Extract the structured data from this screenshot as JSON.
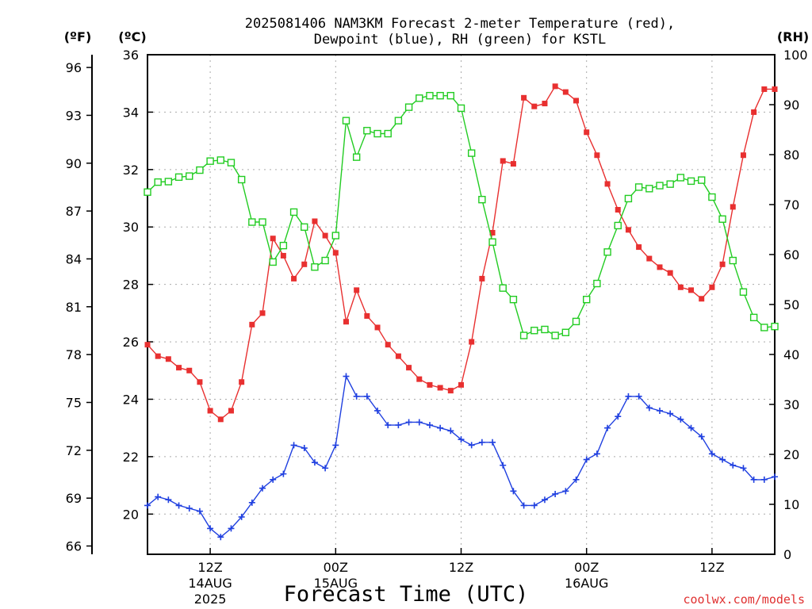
{
  "chart_data": {
    "type": "line",
    "title_line1": "2025081406 NAM3KM Forecast 2-meter Temperature (red),",
    "title_line2": "Dewpoint (blue), RH (green) for KSTL",
    "xlabel": "Forecast Time (UTC)",
    "credit": "coolwx.com/models",
    "left_unit_f": "(ºF)",
    "left_unit_c": "(ºC)",
    "right_unit": "(RH)",
    "ylim_c": [
      18.6,
      36
    ],
    "ylim_rh": [
      0,
      100
    ],
    "xlim_hours": [
      0,
      60
    ],
    "grid": true,
    "f_ticks": [
      "66",
      "69",
      "72",
      "75",
      "78",
      "81",
      "84",
      "87",
      "90",
      "93",
      "96"
    ],
    "f_tick_values_f": [
      66,
      69,
      72,
      75,
      78,
      81,
      84,
      87,
      90,
      93,
      96
    ],
    "c_ticks": [
      "20",
      "22",
      "24",
      "26",
      "28",
      "30",
      "32",
      "34",
      "36"
    ],
    "c_tick_values": [
      20,
      22,
      24,
      26,
      28,
      30,
      32,
      34,
      36
    ],
    "rh_ticks": [
      "0",
      "10",
      "20",
      "30",
      "40",
      "50",
      "60",
      "70",
      "80",
      "90",
      "100"
    ],
    "rh_tick_values": [
      0,
      10,
      20,
      30,
      40,
      50,
      60,
      70,
      80,
      90,
      100
    ],
    "x_ticks": [
      {
        "hour": 6,
        "label": "12Z",
        "sub": "14AUG",
        "sub2": "2025"
      },
      {
        "hour": 18,
        "label": "00Z",
        "sub": "15AUG",
        "sub2": ""
      },
      {
        "hour": 30,
        "label": "12Z",
        "sub": "",
        "sub2": ""
      },
      {
        "hour": 42,
        "label": "00Z",
        "sub": "16AUG",
        "sub2": ""
      },
      {
        "hour": 54,
        "label": "12Z",
        "sub": "",
        "sub2": ""
      }
    ],
    "hours": [
      0,
      1,
      2,
      3,
      4,
      5,
      6,
      7,
      8,
      9,
      10,
      11,
      12,
      13,
      14,
      15,
      16,
      17,
      18,
      19,
      20,
      21,
      22,
      23,
      24,
      25,
      26,
      27,
      28,
      29,
      30,
      31,
      32,
      33,
      34,
      35,
      36,
      37,
      38,
      39,
      40,
      41,
      42,
      43,
      44,
      45,
      46,
      47,
      48,
      49,
      50,
      51,
      52,
      53,
      54,
      55,
      56,
      57,
      58,
      59,
      60
    ],
    "series": [
      {
        "name": "Temperature",
        "unit": "C",
        "color": "#e83030",
        "marker": "filled-square",
        "values": [
          25.9,
          25.5,
          25.4,
          25.1,
          25.0,
          24.6,
          23.6,
          23.3,
          23.6,
          24.6,
          26.6,
          27.0,
          29.6,
          29.0,
          28.2,
          28.7,
          30.2,
          29.7,
          29.1,
          26.7,
          27.8,
          26.9,
          26.5,
          25.9,
          25.5,
          25.1,
          24.7,
          24.5,
          24.4,
          24.3,
          24.5,
          26.0,
          28.2,
          29.8,
          32.3,
          32.2,
          34.5,
          34.2,
          34.3,
          34.9,
          34.7,
          34.4,
          33.3,
          32.5,
          31.5,
          30.6,
          29.9,
          29.3,
          28.9,
          28.6,
          28.4,
          27.9,
          27.8,
          27.5,
          27.9,
          28.7,
          30.7,
          32.5,
          34.0,
          34.8,
          34.8
        ]
      },
      {
        "name": "Dewpoint",
        "unit": "C",
        "color": "#2040e0",
        "marker": "plus",
        "values": [
          20.3,
          20.6,
          20.5,
          20.3,
          20.2,
          20.1,
          19.5,
          19.2,
          19.5,
          19.9,
          20.4,
          20.9,
          21.2,
          21.4,
          22.4,
          22.3,
          21.8,
          21.6,
          22.4,
          24.8,
          24.1,
          24.1,
          23.6,
          23.1,
          23.1,
          23.2,
          23.2,
          23.1,
          23.0,
          22.9,
          22.6,
          22.4,
          22.5,
          22.5,
          21.7,
          20.8,
          20.3,
          20.3,
          20.5,
          20.7,
          20.8,
          21.2,
          21.9,
          22.1,
          23.0,
          23.4,
          24.1,
          24.1,
          23.7,
          23.6,
          23.5,
          23.3,
          23.0,
          22.7,
          22.1,
          21.9,
          21.7,
          21.6,
          21.2,
          21.2,
          21.3
        ]
      },
      {
        "name": "RH",
        "unit": "%",
        "color": "#22cc22",
        "marker": "open-square",
        "values": [
          72.5,
          74.5,
          74.6,
          75.5,
          75.7,
          76.9,
          78.7,
          78.9,
          78.4,
          75.0,
          66.5,
          66.5,
          58.5,
          61.8,
          68.5,
          65.5,
          57.5,
          58.8,
          63.8,
          86.8,
          79.5,
          84.8,
          84.2,
          84.2,
          86.8,
          89.5,
          91.3,
          91.8,
          91.8,
          91.8,
          89.3,
          80.3,
          71.0,
          62.5,
          53.3,
          51.0,
          43.8,
          44.8,
          45.0,
          43.8,
          44.4,
          46.6,
          51.0,
          54.2,
          60.5,
          65.8,
          71.2,
          73.5,
          73.2,
          73.8,
          74.1,
          75.4,
          74.7,
          74.9,
          71.5,
          67.1,
          58.8,
          52.5,
          47.4,
          45.4,
          45.6
        ]
      }
    ]
  }
}
